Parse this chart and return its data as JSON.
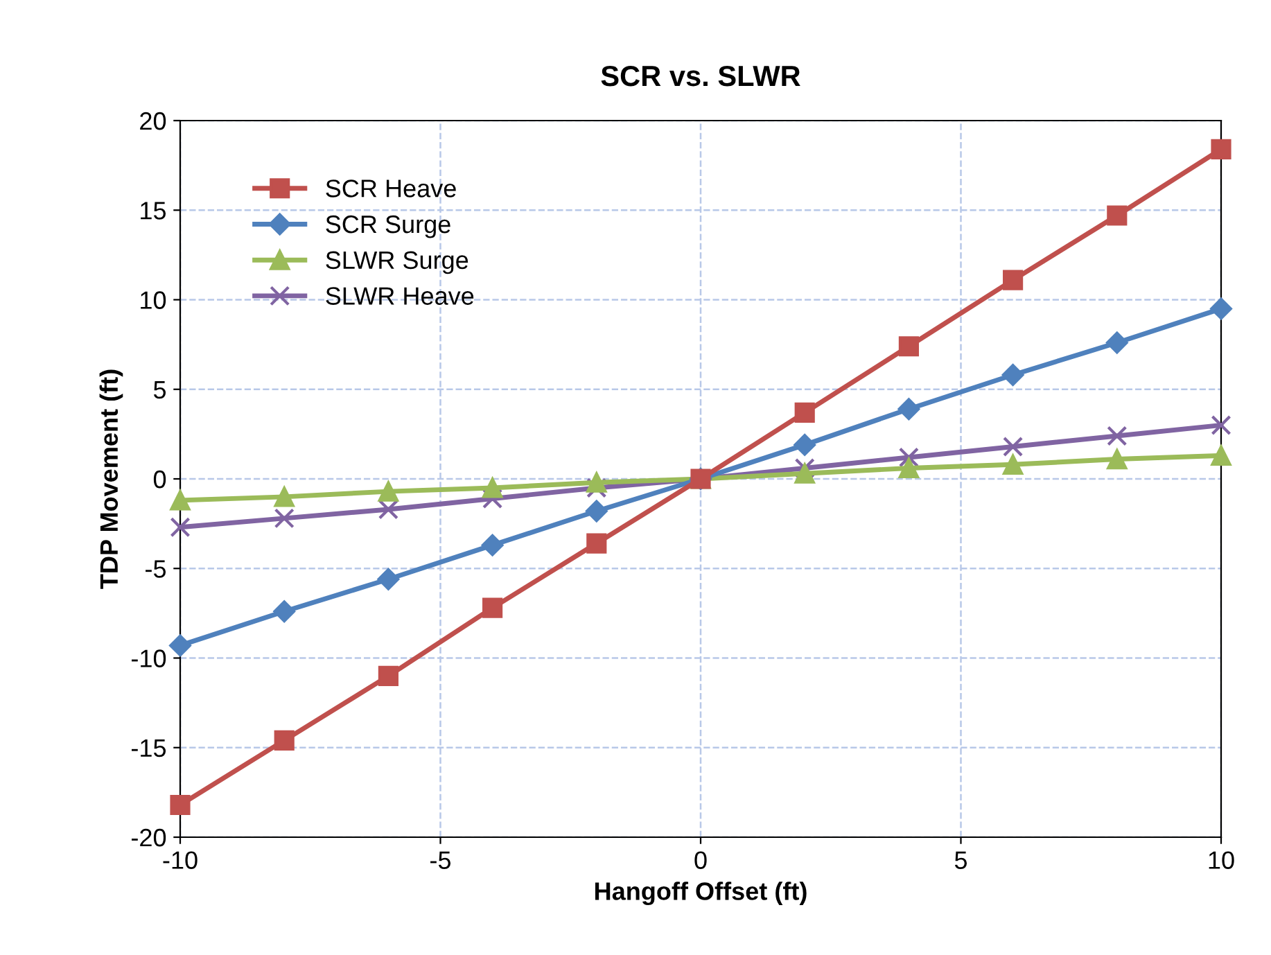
{
  "chart_data": {
    "type": "line",
    "title": "SCR vs. SLWR",
    "xlabel": "Hangoff Offset (ft)",
    "ylabel": "TDP Movement (ft)",
    "x": [
      -10,
      -8,
      -6,
      -4,
      -2,
      0,
      2,
      4,
      6,
      8,
      10
    ],
    "series": [
      {
        "name": "SCR Heave",
        "color": "#c0504d",
        "marker": "square",
        "values": [
          -18.2,
          -14.6,
          -11.0,
          -7.2,
          -3.6,
          0,
          3.7,
          7.4,
          11.1,
          14.7,
          18.4
        ]
      },
      {
        "name": "SCR Surge",
        "color": "#4f81bd",
        "marker": "diamond",
        "values": [
          -9.3,
          -7.4,
          -5.6,
          -3.7,
          -1.8,
          0,
          1.9,
          3.9,
          5.8,
          7.6,
          9.5
        ]
      },
      {
        "name": "SLWR Surge",
        "color": "#9bbb59",
        "marker": "triangle",
        "values": [
          -1.2,
          -1.0,
          -0.7,
          -0.5,
          -0.2,
          0,
          0.3,
          0.6,
          0.8,
          1.1,
          1.3
        ]
      },
      {
        "name": "SLWR Heave",
        "color": "#8064a2",
        "marker": "cross",
        "values": [
          -2.7,
          -2.2,
          -1.7,
          -1.1,
          -0.5,
          0,
          0.6,
          1.2,
          1.8,
          2.4,
          3.0
        ]
      }
    ],
    "xlim": [
      -10,
      10
    ],
    "xticks": [
      -10,
      -5,
      0,
      5,
      10
    ],
    "ylim": [
      -20,
      20
    ],
    "yticks": [
      -20,
      -15,
      -10,
      -5,
      0,
      5,
      10,
      15,
      20
    ],
    "grid": true,
    "legend": "top left",
    "line_style": "solid"
  }
}
